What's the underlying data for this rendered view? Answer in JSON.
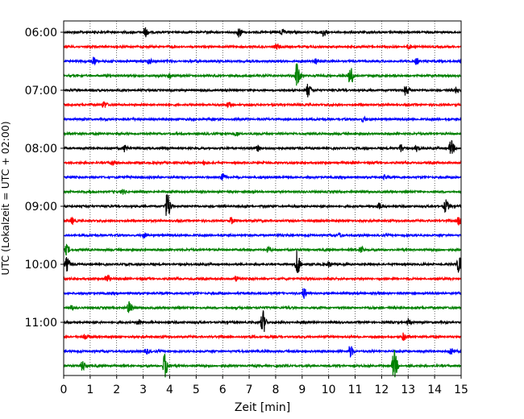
{
  "chart_data": {
    "type": "line",
    "title": "",
    "xlabel": "Zeit  [min]",
    "ylabel": "UTC (Lokalzeit = UTC + 02:00)",
    "xlim": [
      0,
      15
    ],
    "x_ticks": [
      "0",
      "1",
      "2",
      "3",
      "4",
      "5",
      "6",
      "7",
      "8",
      "9",
      "10",
      "11",
      "12",
      "13",
      "14",
      "15"
    ],
    "y_tick_labels": [
      "06:00",
      "07:00",
      "08:00",
      "09:00",
      "10:00",
      "11:00"
    ],
    "grid": "vertical dotted lines at each minute",
    "trace_interval_minutes": 15,
    "trace_colors": [
      "#000000",
      "#ff0000",
      "#0000ff",
      "#008000"
    ],
    "series": [
      {
        "start": "06:00",
        "color": "#000000",
        "events": [
          {
            "x": 3.05,
            "amp": 0.35
          },
          {
            "x": 6.6,
            "amp": 0.3
          },
          {
            "x": 8.2,
            "amp": 0.2
          },
          {
            "x": 9.8,
            "amp": 0.25
          }
        ]
      },
      {
        "start": "06:15",
        "color": "#ff0000",
        "events": [
          {
            "x": 8.0,
            "amp": 0.15
          },
          {
            "x": 13.0,
            "amp": 0.15
          }
        ]
      },
      {
        "start": "06:30",
        "color": "#0000ff",
        "events": [
          {
            "x": 1.1,
            "amp": 0.3
          },
          {
            "x": 3.2,
            "amp": 0.2
          },
          {
            "x": 9.5,
            "amp": 0.2
          },
          {
            "x": 13.3,
            "amp": 0.2
          }
        ]
      },
      {
        "start": "06:45",
        "color": "#008000",
        "events": [
          {
            "x": 8.8,
            "amp": 0.95
          },
          {
            "x": 10.8,
            "amp": 0.7
          },
          {
            "x": 4.0,
            "amp": 0.2
          }
        ]
      },
      {
        "start": "07:00",
        "color": "#000000",
        "events": [
          {
            "x": 9.2,
            "amp": 0.45
          },
          {
            "x": 12.9,
            "amp": 0.35
          },
          {
            "x": 14.8,
            "amp": 0.2
          }
        ]
      },
      {
        "start": "07:15",
        "color": "#ff0000",
        "events": [
          {
            "x": 1.5,
            "amp": 0.25
          },
          {
            "x": 6.2,
            "amp": 0.15
          }
        ]
      },
      {
        "start": "07:30",
        "color": "#0000ff",
        "events": [
          {
            "x": 11.3,
            "amp": 0.15
          }
        ]
      },
      {
        "start": "07:45",
        "color": "#008000",
        "events": [
          {
            "x": 6.5,
            "amp": 0.15
          }
        ]
      },
      {
        "start": "08:00",
        "color": "#000000",
        "events": [
          {
            "x": 2.3,
            "amp": 0.25
          },
          {
            "x": 7.3,
            "amp": 0.2
          },
          {
            "x": 12.7,
            "amp": 0.3
          },
          {
            "x": 13.3,
            "amp": 0.2
          },
          {
            "x": 14.6,
            "amp": 0.55
          }
        ]
      },
      {
        "start": "08:15",
        "color": "#ff0000",
        "events": [
          {
            "x": 1.8,
            "amp": 0.15
          },
          {
            "x": 5.3,
            "amp": 0.15
          }
        ]
      },
      {
        "start": "08:30",
        "color": "#0000ff",
        "events": [
          {
            "x": 5.95,
            "amp": 0.35
          },
          {
            "x": 12.1,
            "amp": 0.15
          }
        ]
      },
      {
        "start": "08:45",
        "color": "#008000",
        "events": [
          {
            "x": 2.2,
            "amp": 0.15
          }
        ]
      },
      {
        "start": "09:00",
        "color": "#000000",
        "events": [
          {
            "x": 3.9,
            "amp": 1.0
          },
          {
            "x": 14.4,
            "amp": 0.45
          },
          {
            "x": 11.9,
            "amp": 0.2
          }
        ]
      },
      {
        "start": "09:15",
        "color": "#ff0000",
        "events": [
          {
            "x": 0.3,
            "amp": 0.2
          },
          {
            "x": 6.3,
            "amp": 0.2
          },
          {
            "x": 14.9,
            "amp": 0.3
          }
        ]
      },
      {
        "start": "09:30",
        "color": "#0000ff",
        "events": [
          {
            "x": 3.0,
            "amp": 0.15
          },
          {
            "x": 10.4,
            "amp": 0.15
          }
        ]
      },
      {
        "start": "09:45",
        "color": "#008000",
        "events": [
          {
            "x": 0.1,
            "amp": 0.35
          },
          {
            "x": 11.2,
            "amp": 0.25
          },
          {
            "x": 7.7,
            "amp": 0.15
          }
        ]
      },
      {
        "start": "10:00",
        "color": "#000000",
        "events": [
          {
            "x": 0.1,
            "amp": 0.45
          },
          {
            "x": 8.8,
            "amp": 0.9
          },
          {
            "x": 14.9,
            "amp": 0.6
          },
          {
            "x": 10.0,
            "amp": 0.2
          }
        ]
      },
      {
        "start": "10:15",
        "color": "#ff0000",
        "events": [
          {
            "x": 1.6,
            "amp": 0.3
          },
          {
            "x": 6.5,
            "amp": 0.2
          }
        ]
      },
      {
        "start": "10:30",
        "color": "#0000ff",
        "events": [
          {
            "x": 9.05,
            "amp": 0.35
          }
        ]
      },
      {
        "start": "10:45",
        "color": "#008000",
        "events": [
          {
            "x": 2.45,
            "amp": 0.4
          },
          {
            "x": 0.3,
            "amp": 0.15
          }
        ]
      },
      {
        "start": "11:00",
        "color": "#000000",
        "events": [
          {
            "x": 7.5,
            "amp": 0.85
          },
          {
            "x": 2.8,
            "amp": 0.2
          },
          {
            "x": 13.0,
            "amp": 0.2
          }
        ]
      },
      {
        "start": "11:15",
        "color": "#ff0000",
        "events": [
          {
            "x": 12.8,
            "amp": 0.25
          },
          {
            "x": 0.8,
            "amp": 0.15
          }
        ]
      },
      {
        "start": "11:30",
        "color": "#0000ff",
        "events": [
          {
            "x": 10.8,
            "amp": 0.4
          },
          {
            "x": 3.1,
            "amp": 0.2
          },
          {
            "x": 14.6,
            "amp": 0.25
          }
        ]
      },
      {
        "start": "11:45",
        "color": "#008000",
        "events": [
          {
            "x": 0.7,
            "amp": 0.35
          },
          {
            "x": 3.8,
            "amp": 0.9
          },
          {
            "x": 12.45,
            "amp": 1.1
          }
        ]
      }
    ]
  }
}
